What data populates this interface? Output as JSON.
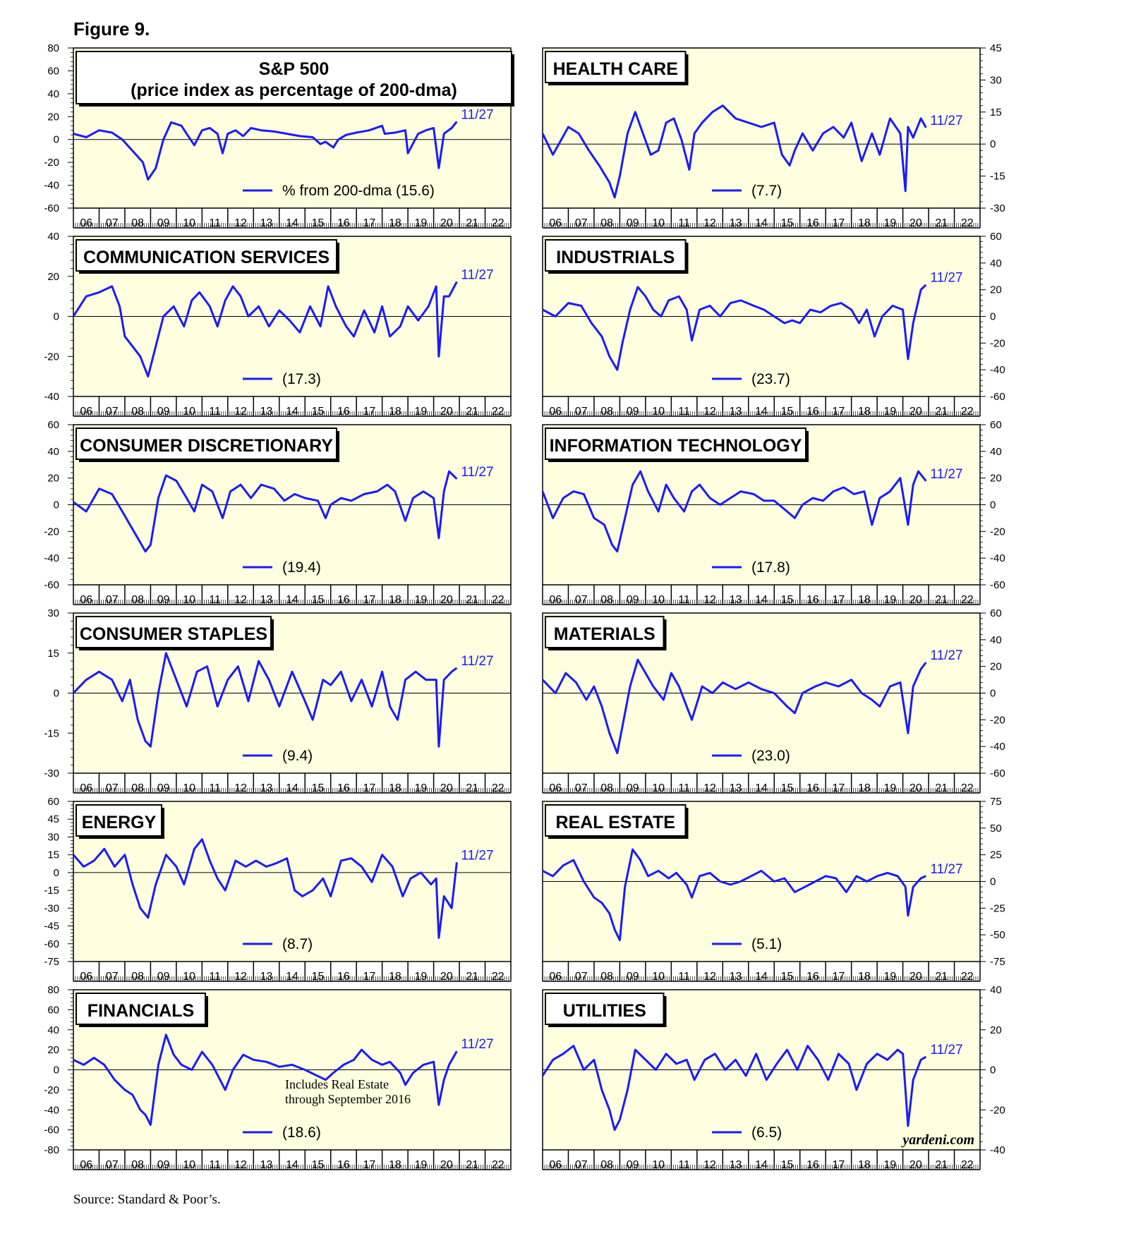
{
  "figure_title": "Figure 9.",
  "source": "Source: Standard & Poor’s.",
  "brand": "yardeni.com",
  "colors": {
    "panel_bg": "#ffffe0",
    "line": "#1a1aff",
    "frame": "#000000"
  },
  "x_tick_labels": [
    "06",
    "07",
    "08",
    "09",
    "10",
    "11",
    "12",
    "13",
    "14",
    "15",
    "16",
    "17",
    "18",
    "19",
    "20",
    "21",
    "22"
  ],
  "chart_data": [
    {
      "type": "line",
      "axis_side": "left",
      "title_lines": [
        "S&P 500",
        "(price index as percentage of 200-dma)"
      ],
      "legend": "% from 200-dma (15.6)",
      "date_label": "11/27",
      "ylim": [
        -60,
        80
      ],
      "yticks": [
        80,
        60,
        40,
        20,
        0,
        -20,
        -40,
        -60
      ],
      "x": [
        2006.0,
        2006.5,
        2007.0,
        2007.5,
        2007.9,
        2008.3,
        2008.7,
        2008.9,
        2009.2,
        2009.5,
        2009.8,
        2010.2,
        2010.4,
        2010.7,
        2011.0,
        2011.3,
        2011.6,
        2011.8,
        2012.0,
        2012.3,
        2012.6,
        2012.9,
        2013.3,
        2013.8,
        2014.3,
        2014.8,
        2015.3,
        2015.6,
        2015.8,
        2016.1,
        2016.3,
        2016.6,
        2017.0,
        2017.5,
        2018.0,
        2018.1,
        2018.5,
        2018.9,
        2019.0,
        2019.4,
        2019.7,
        2020.0,
        2020.2,
        2020.4,
        2020.7,
        2020.9
      ],
      "y": [
        5,
        2,
        8,
        6,
        0,
        -10,
        -20,
        -35,
        -25,
        0,
        15,
        12,
        5,
        -5,
        8,
        10,
        5,
        -12,
        5,
        8,
        3,
        10,
        8,
        7,
        5,
        3,
        2,
        -4,
        -2,
        -7,
        0,
        4,
        6,
        8,
        12,
        5,
        6,
        8,
        -12,
        5,
        8,
        10,
        -25,
        5,
        10,
        15.6
      ]
    },
    {
      "type": "line",
      "axis_side": "right",
      "title_lines": [
        "HEALTH CARE"
      ],
      "legend": "(7.7)",
      "date_label": "11/27",
      "ylim": [
        -30,
        45
      ],
      "yticks": [
        45,
        30,
        15,
        0,
        -15,
        -30
      ],
      "x": [
        2006.0,
        2006.4,
        2007.0,
        2007.4,
        2007.8,
        2008.2,
        2008.6,
        2008.8,
        2009.0,
        2009.3,
        2009.6,
        2009.9,
        2010.2,
        2010.5,
        2010.8,
        2011.1,
        2011.4,
        2011.7,
        2011.9,
        2012.2,
        2012.6,
        2013.0,
        2013.5,
        2014.0,
        2014.5,
        2015.0,
        2015.3,
        2015.6,
        2015.8,
        2016.1,
        2016.5,
        2016.9,
        2017.3,
        2017.7,
        2018.0,
        2018.4,
        2018.8,
        2019.1,
        2019.5,
        2019.9,
        2020.1,
        2020.2,
        2020.4,
        2020.7,
        2020.9
      ],
      "y": [
        5,
        -5,
        8,
        5,
        -3,
        -10,
        -18,
        -25,
        -15,
        5,
        15,
        5,
        -5,
        -3,
        10,
        12,
        2,
        -12,
        5,
        10,
        15,
        18,
        12,
        10,
        8,
        10,
        -5,
        -10,
        -3,
        5,
        -3,
        5,
        8,
        3,
        10,
        -8,
        5,
        -5,
        12,
        5,
        -22,
        8,
        3,
        12,
        7.7
      ]
    },
    {
      "type": "line",
      "axis_side": "left",
      "title_lines": [
        "COMMUNICATION SERVICES"
      ],
      "legend": "(17.3)",
      "date_label": "11/27",
      "ylim": [
        -40,
        40
      ],
      "yticks": [
        40,
        20,
        0,
        -20,
        -40
      ],
      "x": [
        2006.0,
        2006.5,
        2007.0,
        2007.5,
        2007.8,
        2008.0,
        2008.3,
        2008.6,
        2008.9,
        2009.2,
        2009.5,
        2009.9,
        2010.3,
        2010.6,
        2010.9,
        2011.3,
        2011.6,
        2011.9,
        2012.2,
        2012.5,
        2012.8,
        2013.2,
        2013.6,
        2014.0,
        2014.4,
        2014.8,
        2015.2,
        2015.6,
        2015.9,
        2016.2,
        2016.6,
        2016.9,
        2017.3,
        2017.7,
        2018.0,
        2018.3,
        2018.7,
        2019.0,
        2019.4,
        2019.8,
        2020.1,
        2020.2,
        2020.4,
        2020.6,
        2020.9
      ],
      "y": [
        0,
        10,
        12,
        15,
        5,
        -10,
        -15,
        -20,
        -30,
        -15,
        0,
        5,
        -5,
        8,
        12,
        5,
        -5,
        8,
        15,
        10,
        0,
        5,
        -5,
        3,
        -2,
        -8,
        5,
        -5,
        15,
        5,
        -5,
        -10,
        3,
        -8,
        5,
        -10,
        -5,
        5,
        -2,
        5,
        15,
        -20,
        10,
        10,
        17.3
      ]
    },
    {
      "type": "line",
      "axis_side": "right",
      "title_lines": [
        "INDUSTRIALS"
      ],
      "legend": "(23.7)",
      "date_label": "11/27",
      "ylim": [
        -60,
        60
      ],
      "yticks": [
        60,
        40,
        20,
        0,
        -20,
        -40,
        -60
      ],
      "x": [
        2006.0,
        2006.5,
        2007.0,
        2007.5,
        2007.9,
        2008.3,
        2008.6,
        2008.9,
        2009.1,
        2009.4,
        2009.7,
        2010.0,
        2010.3,
        2010.6,
        2010.9,
        2011.3,
        2011.6,
        2011.8,
        2012.1,
        2012.5,
        2012.9,
        2013.3,
        2013.7,
        2014.2,
        2014.6,
        2015.0,
        2015.4,
        2015.7,
        2016.0,
        2016.4,
        2016.8,
        2017.2,
        2017.6,
        2018.0,
        2018.3,
        2018.6,
        2018.9,
        2019.2,
        2019.6,
        2020.0,
        2020.2,
        2020.4,
        2020.7,
        2020.9
      ],
      "y": [
        5,
        0,
        10,
        8,
        -5,
        -15,
        -30,
        -40,
        -20,
        5,
        22,
        15,
        5,
        0,
        12,
        15,
        5,
        -18,
        5,
        8,
        0,
        10,
        12,
        8,
        5,
        0,
        -5,
        -3,
        -5,
        5,
        3,
        8,
        10,
        5,
        -5,
        5,
        -15,
        0,
        8,
        5,
        -32,
        -5,
        20,
        23.7
      ]
    },
    {
      "type": "line",
      "axis_side": "left",
      "title_lines": [
        "CONSUMER DISCRETIONARY"
      ],
      "legend": "(19.4)",
      "date_label": "11/27",
      "ylim": [
        -60,
        60
      ],
      "yticks": [
        60,
        40,
        20,
        0,
        -20,
        -40,
        -60
      ],
      "x": [
        2006.0,
        2006.5,
        2007.0,
        2007.5,
        2007.9,
        2008.2,
        2008.5,
        2008.8,
        2009.0,
        2009.3,
        2009.6,
        2010.0,
        2010.4,
        2010.7,
        2011.0,
        2011.4,
        2011.8,
        2012.1,
        2012.5,
        2012.9,
        2013.3,
        2013.8,
        2014.2,
        2014.6,
        2015.0,
        2015.5,
        2015.8,
        2016.0,
        2016.4,
        2016.8,
        2017.3,
        2017.8,
        2018.2,
        2018.5,
        2018.9,
        2019.2,
        2019.6,
        2020.0,
        2020.2,
        2020.4,
        2020.6,
        2020.9
      ],
      "y": [
        2,
        -5,
        12,
        8,
        -5,
        -15,
        -25,
        -35,
        -30,
        5,
        22,
        18,
        5,
        -5,
        15,
        10,
        -10,
        10,
        15,
        5,
        15,
        12,
        3,
        8,
        5,
        3,
        -10,
        0,
        5,
        3,
        8,
        10,
        15,
        10,
        -12,
        5,
        10,
        5,
        -25,
        10,
        25,
        19.4
      ]
    },
    {
      "type": "line",
      "axis_side": "right",
      "title_lines": [
        "INFORMATION TECHNOLOGY"
      ],
      "legend": "(17.8)",
      "date_label": "11/27",
      "ylim": [
        -60,
        60
      ],
      "yticks": [
        60,
        40,
        20,
        0,
        -20,
        -40,
        -60
      ],
      "x": [
        2006.0,
        2006.4,
        2006.8,
        2007.2,
        2007.6,
        2008.0,
        2008.4,
        2008.7,
        2008.9,
        2009.2,
        2009.5,
        2009.8,
        2010.1,
        2010.5,
        2010.8,
        2011.1,
        2011.5,
        2011.8,
        2012.1,
        2012.5,
        2012.9,
        2013.3,
        2013.7,
        2014.2,
        2014.6,
        2015.0,
        2015.5,
        2015.8,
        2016.1,
        2016.5,
        2016.9,
        2017.3,
        2017.7,
        2018.1,
        2018.5,
        2018.8,
        2019.1,
        2019.5,
        2019.9,
        2020.2,
        2020.4,
        2020.6,
        2020.9
      ],
      "y": [
        10,
        -10,
        5,
        10,
        8,
        -10,
        -15,
        -30,
        -35,
        -10,
        15,
        25,
        10,
        -5,
        15,
        5,
        -5,
        10,
        15,
        5,
        0,
        5,
        10,
        8,
        3,
        3,
        -5,
        -10,
        0,
        5,
        3,
        10,
        13,
        8,
        10,
        -15,
        5,
        10,
        20,
        -15,
        15,
        25,
        17.8
      ]
    },
    {
      "type": "line",
      "axis_side": "left",
      "title_lines": [
        "CONSUMER STAPLES"
      ],
      "legend": "(9.4)",
      "date_label": "11/27",
      "ylim": [
        -30,
        30
      ],
      "yticks": [
        30,
        15,
        0,
        -15,
        -30
      ],
      "x": [
        2006.0,
        2006.5,
        2007.0,
        2007.5,
        2007.9,
        2008.2,
        2008.5,
        2008.8,
        2009.0,
        2009.3,
        2009.6,
        2010.0,
        2010.4,
        2010.8,
        2011.2,
        2011.6,
        2012.0,
        2012.4,
        2012.8,
        2013.2,
        2013.6,
        2014.0,
        2014.5,
        2015.0,
        2015.3,
        2015.7,
        2016.0,
        2016.4,
        2016.8,
        2017.2,
        2017.6,
        2018.0,
        2018.3,
        2018.6,
        2018.9,
        2019.3,
        2019.7,
        2020.1,
        2020.2,
        2020.4,
        2020.7,
        2020.9
      ],
      "y": [
        0,
        5,
        8,
        5,
        -3,
        5,
        -10,
        -18,
        -20,
        0,
        15,
        5,
        -5,
        8,
        10,
        -5,
        5,
        10,
        -3,
        12,
        5,
        -5,
        8,
        -3,
        -10,
        5,
        3,
        8,
        -3,
        5,
        -5,
        8,
        -5,
        -10,
        5,
        8,
        5,
        5,
        -20,
        5,
        8,
        9.4
      ]
    },
    {
      "type": "line",
      "axis_side": "right",
      "title_lines": [
        "MATERIALS"
      ],
      "legend": "(23.0)",
      "date_label": "11/27",
      "ylim": [
        -60,
        60
      ],
      "yticks": [
        60,
        40,
        20,
        0,
        -20,
        -40,
        -60
      ],
      "x": [
        2006.0,
        2006.5,
        2006.9,
        2007.3,
        2007.7,
        2008.0,
        2008.3,
        2008.6,
        2008.9,
        2009.1,
        2009.4,
        2009.7,
        2010.0,
        2010.3,
        2010.7,
        2011.0,
        2011.3,
        2011.6,
        2011.8,
        2012.2,
        2012.6,
        2013.0,
        2013.5,
        2014.0,
        2014.5,
        2015.0,
        2015.5,
        2015.8,
        2016.1,
        2016.6,
        2017.0,
        2017.5,
        2018.0,
        2018.4,
        2018.8,
        2019.1,
        2019.5,
        2019.9,
        2020.2,
        2020.4,
        2020.7,
        2020.9
      ],
      "y": [
        10,
        0,
        15,
        8,
        -5,
        5,
        -10,
        -30,
        -45,
        -25,
        5,
        25,
        15,
        5,
        -5,
        15,
        5,
        -10,
        -20,
        5,
        0,
        8,
        3,
        8,
        3,
        0,
        -10,
        -15,
        0,
        5,
        8,
        5,
        10,
        0,
        -5,
        -10,
        5,
        8,
        -30,
        5,
        18,
        23.0
      ]
    },
    {
      "type": "line",
      "axis_side": "left",
      "title_lines": [
        "ENERGY"
      ],
      "legend": "(8.7)",
      "date_label": "11/27",
      "ylim": [
        -75,
        60
      ],
      "yticks": [
        60,
        45,
        30,
        15,
        0,
        -15,
        -30,
        -45,
        -60,
        -75
      ],
      "x": [
        2006.0,
        2006.4,
        2006.8,
        2007.2,
        2007.6,
        2008.0,
        2008.3,
        2008.6,
        2008.9,
        2009.2,
        2009.6,
        2010.0,
        2010.3,
        2010.7,
        2011.0,
        2011.3,
        2011.6,
        2011.9,
        2012.3,
        2012.7,
        2013.1,
        2013.5,
        2013.9,
        2014.3,
        2014.6,
        2014.9,
        2015.3,
        2015.7,
        2016.0,
        2016.4,
        2016.8,
        2017.2,
        2017.6,
        2018.0,
        2018.4,
        2018.8,
        2019.1,
        2019.5,
        2019.9,
        2020.1,
        2020.2,
        2020.4,
        2020.7,
        2020.9
      ],
      "y": [
        15,
        5,
        10,
        20,
        5,
        15,
        -10,
        -30,
        -38,
        -10,
        15,
        5,
        -10,
        20,
        28,
        10,
        -5,
        -15,
        10,
        5,
        10,
        5,
        8,
        12,
        -15,
        -20,
        -15,
        -5,
        -20,
        10,
        12,
        5,
        -8,
        15,
        5,
        -20,
        -5,
        0,
        -10,
        -5,
        -55,
        -20,
        -30,
        8.7
      ]
    },
    {
      "type": "line",
      "axis_side": "right",
      "title_lines": [
        "REAL ESTATE"
      ],
      "legend": "(5.1)",
      "date_label": "11/27",
      "ylim": [
        -75,
        75
      ],
      "yticks": [
        75,
        50,
        25,
        0,
        -25,
        -50,
        -75
      ],
      "x": [
        2006.0,
        2006.4,
        2006.8,
        2007.2,
        2007.6,
        2008.0,
        2008.3,
        2008.6,
        2008.8,
        2009.0,
        2009.2,
        2009.5,
        2009.8,
        2010.1,
        2010.5,
        2010.9,
        2011.2,
        2011.6,
        2011.8,
        2012.1,
        2012.5,
        2012.9,
        2013.3,
        2013.7,
        2014.1,
        2014.5,
        2015.0,
        2015.4,
        2015.8,
        2016.2,
        2016.6,
        2017.0,
        2017.4,
        2017.8,
        2018.2,
        2018.6,
        2019.0,
        2019.4,
        2019.8,
        2020.1,
        2020.2,
        2020.4,
        2020.7,
        2020.9
      ],
      "y": [
        10,
        5,
        15,
        20,
        0,
        -15,
        -20,
        -30,
        -45,
        -55,
        -5,
        30,
        20,
        5,
        10,
        3,
        8,
        -3,
        -15,
        5,
        8,
        0,
        -3,
        0,
        5,
        10,
        0,
        3,
        -10,
        -5,
        0,
        5,
        3,
        -10,
        5,
        0,
        5,
        8,
        5,
        -5,
        -32,
        -5,
        3,
        5.1
      ]
    },
    {
      "type": "line",
      "axis_side": "left",
      "title_lines": [
        "FINANCIALS"
      ],
      "legend": "(18.6)",
      "date_label": "11/27",
      "note_lines": [
        "Includes Real Estate",
        "through September 2016"
      ],
      "ylim": [
        -80,
        80
      ],
      "yticks": [
        80,
        60,
        40,
        20,
        0,
        -20,
        -40,
        -60,
        -80
      ],
      "x": [
        2006.0,
        2006.4,
        2006.8,
        2007.2,
        2007.6,
        2008.0,
        2008.3,
        2008.6,
        2008.8,
        2009.0,
        2009.3,
        2009.6,
        2009.9,
        2010.2,
        2010.6,
        2011.0,
        2011.4,
        2011.7,
        2011.9,
        2012.2,
        2012.6,
        2013.0,
        2013.5,
        2014.0,
        2014.5,
        2015.0,
        2015.4,
        2015.8,
        2016.1,
        2016.5,
        2016.9,
        2017.2,
        2017.6,
        2018.0,
        2018.3,
        2018.7,
        2018.9,
        2019.2,
        2019.6,
        2020.0,
        2020.2,
        2020.4,
        2020.6,
        2020.9
      ],
      "y": [
        10,
        5,
        12,
        5,
        -10,
        -20,
        -25,
        -40,
        -45,
        -55,
        5,
        35,
        15,
        5,
        0,
        18,
        5,
        -10,
        -20,
        0,
        15,
        10,
        8,
        3,
        5,
        0,
        -5,
        -10,
        -3,
        5,
        10,
        20,
        10,
        5,
        8,
        -3,
        -15,
        -3,
        5,
        8,
        -35,
        -10,
        5,
        18.6
      ]
    },
    {
      "type": "line",
      "axis_side": "right",
      "title_lines": [
        "UTILITIES"
      ],
      "legend": "(6.5)",
      "date_label": "11/27",
      "ylim": [
        -40,
        40
      ],
      "yticks": [
        40,
        20,
        0,
        -20,
        -40
      ],
      "x": [
        2006.0,
        2006.4,
        2006.8,
        2007.2,
        2007.6,
        2008.0,
        2008.3,
        2008.6,
        2008.8,
        2009.0,
        2009.3,
        2009.6,
        2010.0,
        2010.4,
        2010.8,
        2011.2,
        2011.6,
        2011.9,
        2012.3,
        2012.7,
        2013.1,
        2013.5,
        2013.9,
        2014.3,
        2014.7,
        2015.1,
        2015.5,
        2015.9,
        2016.3,
        2016.7,
        2017.1,
        2017.5,
        2017.9,
        2018.2,
        2018.6,
        2019.0,
        2019.4,
        2019.8,
        2020.0,
        2020.2,
        2020.4,
        2020.7,
        2020.9
      ],
      "y": [
        -3,
        5,
        8,
        12,
        0,
        5,
        -10,
        -20,
        -30,
        -25,
        -10,
        10,
        5,
        0,
        8,
        3,
        5,
        -5,
        5,
        8,
        0,
        5,
        -3,
        8,
        -5,
        3,
        10,
        0,
        12,
        5,
        -5,
        8,
        3,
        -10,
        3,
        8,
        5,
        10,
        8,
        -28,
        -5,
        5,
        6.5
      ]
    }
  ]
}
